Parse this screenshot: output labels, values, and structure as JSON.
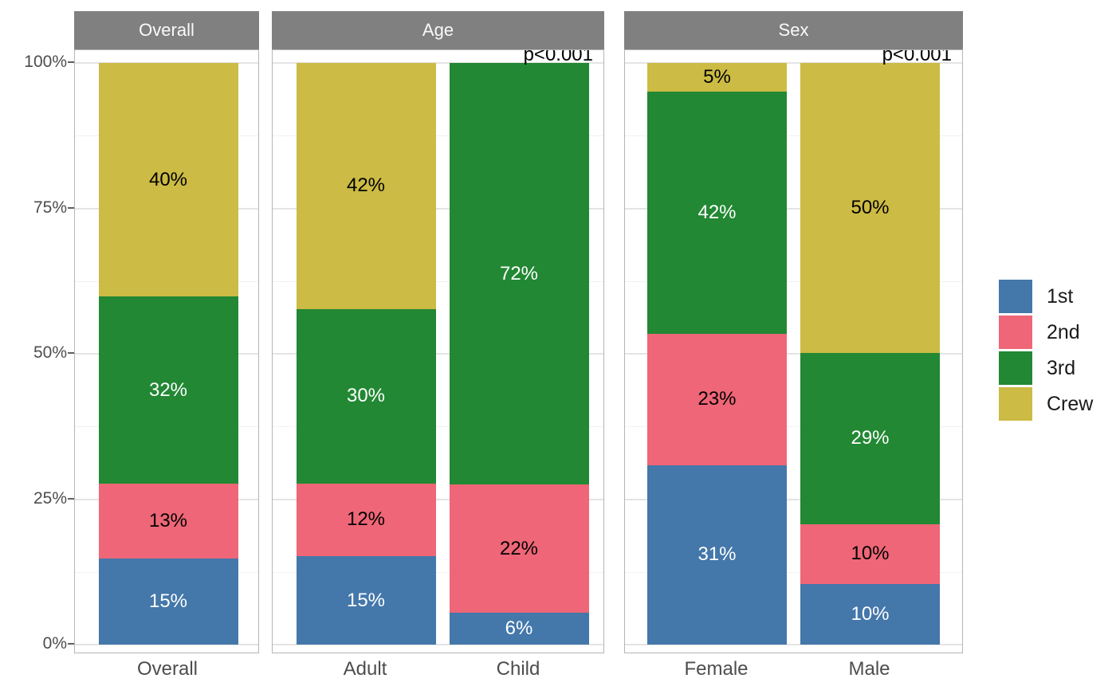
{
  "chart_data": {
    "type": "bar",
    "stacked": true,
    "unit": "percent",
    "grid": "on",
    "y_axis": {
      "ticks": [
        "0%",
        "25%",
        "50%",
        "75%",
        "100%"
      ],
      "tick_values": [
        0,
        25,
        50,
        75,
        100
      ],
      "minor_tick_values": [
        12.5,
        37.5,
        62.5,
        87.5
      ],
      "range": [
        0,
        100
      ]
    },
    "series_order": [
      "1st",
      "2nd",
      "3rd",
      "Crew"
    ],
    "colors": {
      "1st": "#4477AA",
      "2nd": "#EE6677",
      "3rd": "#228833",
      "Crew": "#CCBB44"
    },
    "label_text_colors": {
      "1st": "#FFFFFF",
      "2nd": "#000000",
      "3rd": "#FFFFFF",
      "Crew": "#000000"
    },
    "panels": [
      {
        "title": "Overall",
        "annotation": "",
        "bars": [
          {
            "category": "Overall",
            "segments": [
              {
                "name": "1st",
                "value": 14.8,
                "label": "15%"
              },
              {
                "name": "2nd",
                "value": 12.9,
                "label": "13%"
              },
              {
                "name": "3rd",
                "value": 32.1,
                "label": "32%"
              },
              {
                "name": "Crew",
                "value": 40.2,
                "label": "40%"
              }
            ]
          }
        ]
      },
      {
        "title": "Age",
        "annotation": "p<0.001",
        "bars": [
          {
            "category": "Adult",
            "segments": [
              {
                "name": "1st",
                "value": 15.2,
                "label": "15%"
              },
              {
                "name": "2nd",
                "value": 12.5,
                "label": "12%"
              },
              {
                "name": "3rd",
                "value": 30.0,
                "label": "30%"
              },
              {
                "name": "Crew",
                "value": 42.3,
                "label": "42%"
              }
            ]
          },
          {
            "category": "Child",
            "segments": [
              {
                "name": "1st",
                "value": 5.5,
                "label": "6%"
              },
              {
                "name": "2nd",
                "value": 22.0,
                "label": "22%"
              },
              {
                "name": "3rd",
                "value": 72.5,
                "label": "72%"
              },
              {
                "name": "Crew",
                "value": 0,
                "label": ""
              }
            ]
          }
        ]
      },
      {
        "title": "Sex",
        "annotation": "p<0.001",
        "bars": [
          {
            "category": "Female",
            "segments": [
              {
                "name": "1st",
                "value": 30.9,
                "label": "31%"
              },
              {
                "name": "2nd",
                "value": 22.6,
                "label": "23%"
              },
              {
                "name": "3rd",
                "value": 41.7,
                "label": "42%"
              },
              {
                "name": "Crew",
                "value": 4.9,
                "label": "5%"
              }
            ]
          },
          {
            "category": "Male",
            "segments": [
              {
                "name": "1st",
                "value": 10.4,
                "label": "10%"
              },
              {
                "name": "2nd",
                "value": 10.3,
                "label": "10%"
              },
              {
                "name": "3rd",
                "value": 29.5,
                "label": "29%"
              },
              {
                "name": "Crew",
                "value": 49.8,
                "label": "50%"
              }
            ]
          }
        ]
      }
    ],
    "legend": {
      "position": "right",
      "items": [
        {
          "label": "1st",
          "color": "#4477AA"
        },
        {
          "label": "2nd",
          "color": "#EE6677"
        },
        {
          "label": "3rd",
          "color": "#228833"
        },
        {
          "label": "Crew",
          "color": "#CCBB44"
        }
      ]
    },
    "style": {
      "strip_background": "#808080",
      "strip_text_color": "#FAFAFA",
      "panel_border_color": "#B5B5B5",
      "grid_major_color": "#E4E4E4",
      "grid_minor_color": "#F1F1F1",
      "axis_text_color": "#4D4D4D",
      "annotation_color": "#000000"
    }
  }
}
